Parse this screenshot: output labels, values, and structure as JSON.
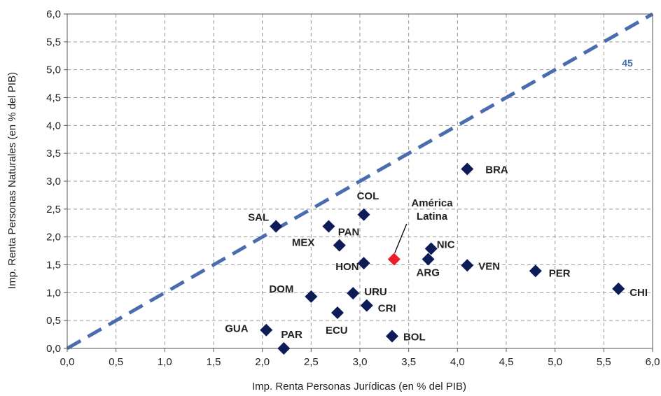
{
  "colors": {
    "marker": "#0d1b57",
    "highlight": "#ee1c25",
    "reference_line": "#4a6db0",
    "grid": "#9a9a9a",
    "text": "#222222"
  },
  "chart_data": {
    "type": "scatter",
    "xlabel": "Imp. Renta Personas Jurídicas (en % del PIB)",
    "ylabel": "Imp. Renta Personas Naturales (en % del PIB)",
    "xlim": [
      0,
      6
    ],
    "ylim": [
      0,
      6
    ],
    "x_ticks": [
      "0,0",
      "0,5",
      "1,0",
      "1,5",
      "2,0",
      "2,5",
      "3,0",
      "3,5",
      "4,0",
      "4,5",
      "5,0",
      "5,5",
      "6,0"
    ],
    "y_ticks": [
      "0,0",
      "0,5",
      "1,0",
      "1,5",
      "2,0",
      "2,5",
      "3,0",
      "3,5",
      "4,0",
      "4,5",
      "5,0",
      "5,5",
      "6,0"
    ],
    "grid": true,
    "reference_line": {
      "label": "45",
      "x": [
        0,
        6
      ],
      "y": [
        0,
        6
      ],
      "style": "dashed"
    },
    "points": [
      {
        "label": "BRA",
        "x": 4.1,
        "y": 3.22
      },
      {
        "label": "COL",
        "x": 3.04,
        "y": 2.4
      },
      {
        "label": "SAL",
        "x": 2.14,
        "y": 2.19
      },
      {
        "label": "MEX",
        "x": 2.68,
        "y": 2.19
      },
      {
        "label": "PAN",
        "x": 2.79,
        "y": 1.85
      },
      {
        "label": "NIC",
        "x": 3.73,
        "y": 1.79
      },
      {
        "label": "HON",
        "x": 3.04,
        "y": 1.53
      },
      {
        "label": "ARG",
        "x": 3.7,
        "y": 1.6
      },
      {
        "label": "VEN",
        "x": 4.1,
        "y": 1.49
      },
      {
        "label": "PER",
        "x": 4.8,
        "y": 1.39
      },
      {
        "label": "CHI",
        "x": 5.65,
        "y": 1.07
      },
      {
        "label": "DOM",
        "x": 2.5,
        "y": 0.93
      },
      {
        "label": "URU",
        "x": 2.93,
        "y": 0.99
      },
      {
        "label": "CRI",
        "x": 3.07,
        "y": 0.77
      },
      {
        "label": "ECU",
        "x": 2.77,
        "y": 0.64
      },
      {
        "label": "GUA",
        "x": 2.04,
        "y": 0.33
      },
      {
        "label": "BOL",
        "x": 3.33,
        "y": 0.22
      },
      {
        "label": "PAR",
        "x": 2.22,
        "y": 0.0
      }
    ],
    "highlight": {
      "label_line1": "América",
      "label_line2": "Latina",
      "x": 3.35,
      "y": 1.6
    }
  }
}
